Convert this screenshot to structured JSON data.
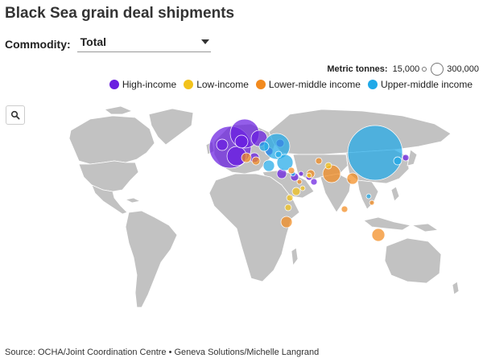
{
  "title": "Black Sea grain deal shipments",
  "commodity": {
    "label": "Commodity:",
    "value": "Total"
  },
  "size_legend": {
    "label": "Metric tonnes:",
    "min": "15,000",
    "max": "300,000"
  },
  "categories": [
    {
      "key": "high",
      "label": "High-income",
      "color": "#6a1fe0"
    },
    {
      "key": "low",
      "label": "Low-income",
      "color": "#f2c21b"
    },
    {
      "key": "lowmid",
      "label": "Lower-middle income",
      "color": "#f28a1e"
    },
    {
      "key": "uppmid",
      "label": "Upper-middle income",
      "color": "#21a9e8"
    }
  ],
  "source": "Source: OCHA/Joint Coordination Centre • Geneva Solutions/Michelle Langrand",
  "icons": {
    "zoom": "search-icon",
    "dropdown": "chevron-down-icon"
  }
}
